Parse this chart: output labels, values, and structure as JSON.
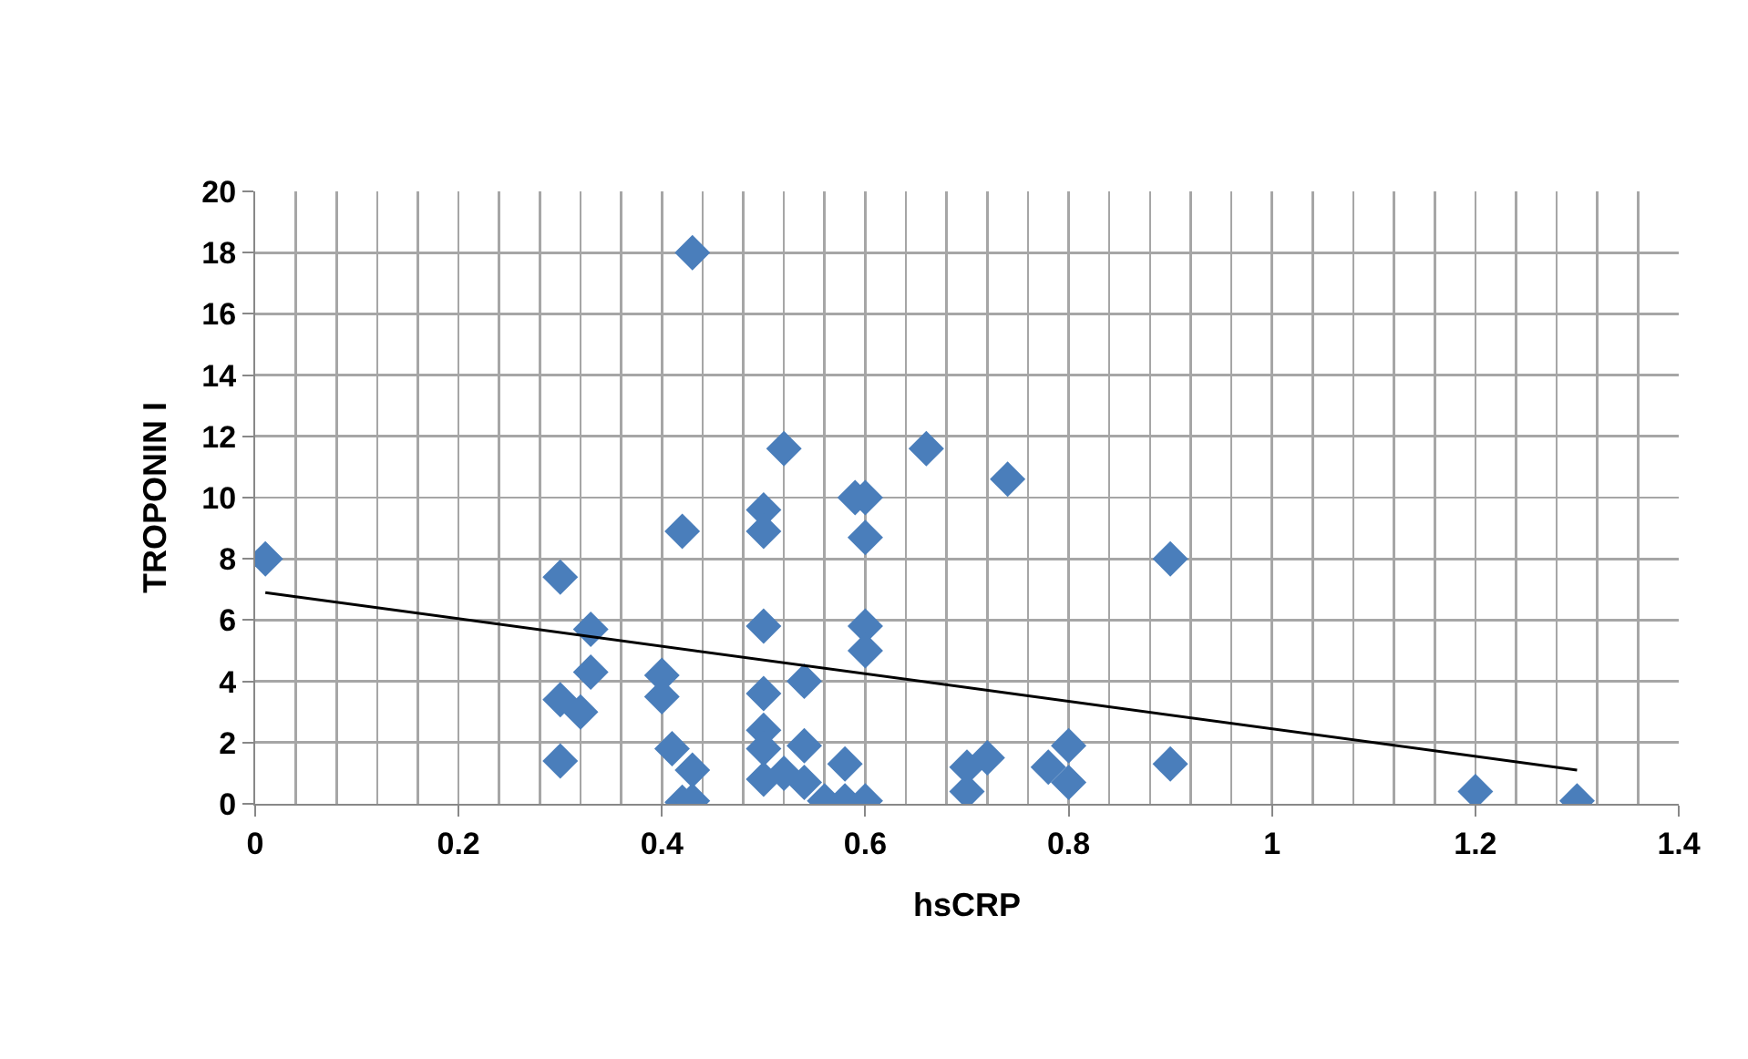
{
  "chart_data": {
    "type": "scatter",
    "xlabel": "hsCRP",
    "ylabel": "TROPONIN I",
    "xlim": [
      0,
      1.4
    ],
    "ylim": [
      0,
      20
    ],
    "xticks": [
      0,
      0.2,
      0.4,
      0.6,
      0.8,
      1,
      1.2,
      1.4
    ],
    "yticks": [
      0,
      2,
      4,
      6,
      8,
      10,
      12,
      14,
      16,
      18,
      20
    ],
    "grid": true,
    "marker": "diamond",
    "series": [
      {
        "color": "#4a7ebb",
        "x": [
          0.01,
          0.3,
          0.3,
          0.3,
          0.32,
          0.33,
          0.33,
          0.4,
          0.4,
          0.41,
          0.42,
          0.42,
          0.43,
          0.43,
          0.43,
          0.5,
          0.5,
          0.5,
          0.5,
          0.5,
          0.5,
          0.5,
          0.52,
          0.52,
          0.54,
          0.54,
          0.54,
          0.56,
          0.58,
          0.58,
          0.59,
          0.6,
          0.6,
          0.6,
          0.6,
          0.6,
          0.66,
          0.7,
          0.7,
          0.72,
          0.74,
          0.78,
          0.8,
          0.8,
          0.9,
          0.9,
          1.2,
          1.3
        ],
        "values": [
          8,
          7.4,
          3.4,
          1.4,
          3,
          5.7,
          4.3,
          4.2,
          3.5,
          1.8,
          8.9,
          0.05,
          18,
          1.1,
          0.1,
          9.6,
          8.9,
          5.8,
          3.6,
          2.4,
          1.8,
          0.8,
          11.6,
          1,
          4,
          1.9,
          0.7,
          0.1,
          1.3,
          0.1,
          10,
          10,
          8.7,
          5.8,
          5,
          0.1,
          11.6,
          1.2,
          0.4,
          1.5,
          10.6,
          1.2,
          1.9,
          0.7,
          8,
          1.3,
          0.4,
          0.1
        ]
      },
      {
        "type": "line",
        "color": "#000000",
        "marker": "none",
        "x": [
          0.01,
          1.3
        ],
        "values": [
          6.9,
          1.1
        ]
      }
    ]
  }
}
